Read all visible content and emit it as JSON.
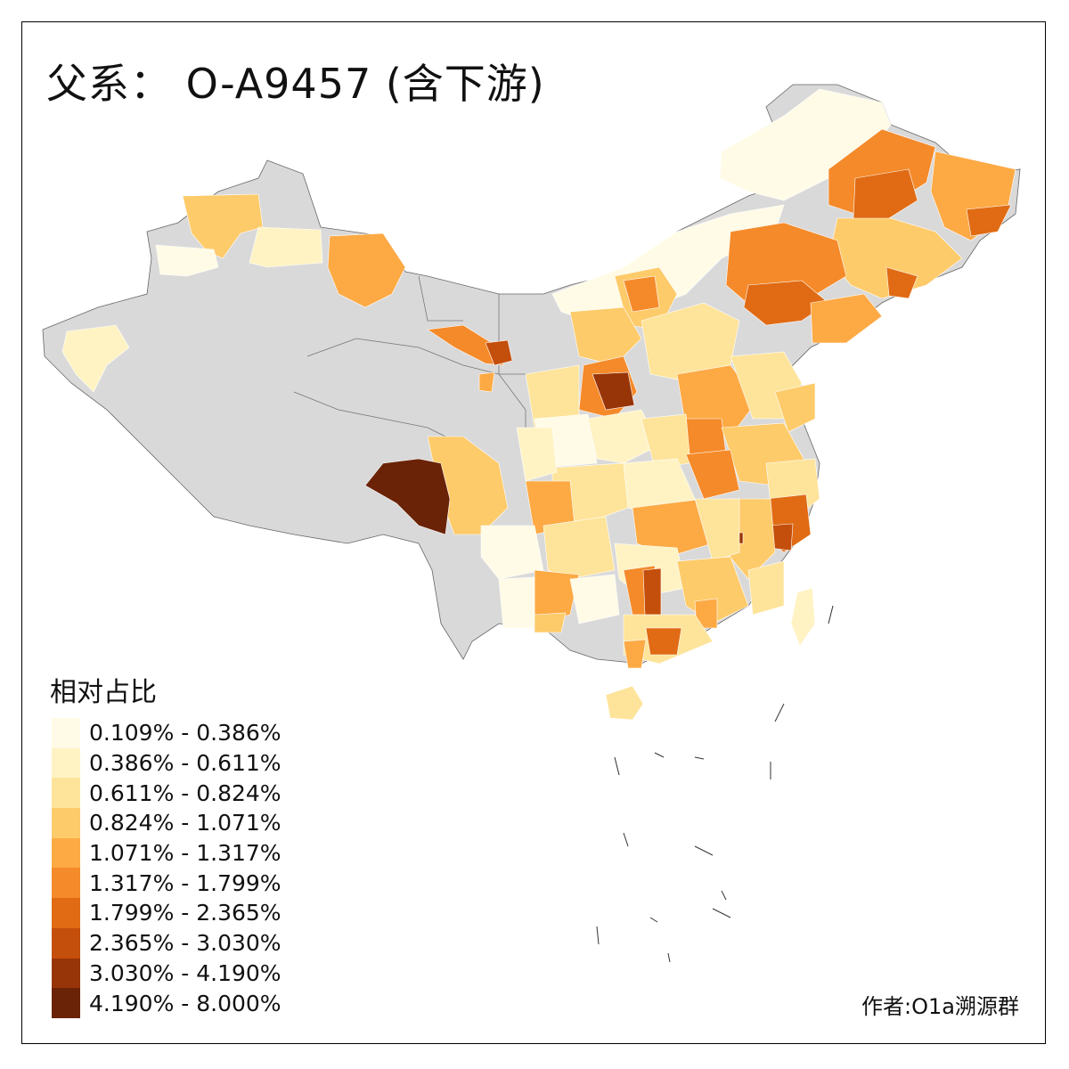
{
  "title": "父系：  O-A9457 (含下游)",
  "legend": {
    "title": "相对占比",
    "items": [
      {
        "label": "0.109% - 0.386%",
        "color": "#fffbe6"
      },
      {
        "label": "0.386% - 0.611%",
        "color": "#fff3c4"
      },
      {
        "label": "0.611% - 0.824%",
        "color": "#fee49a"
      },
      {
        "label": "0.824% - 1.071%",
        "color": "#fecb6b"
      },
      {
        "label": "1.071% - 1.317%",
        "color": "#fdaa45"
      },
      {
        "label": "1.317% - 1.799%",
        "color": "#f58a2a"
      },
      {
        "label": "1.799% - 2.365%",
        "color": "#e06b14"
      },
      {
        "label": "2.365% - 3.030%",
        "color": "#c44e0b"
      },
      {
        "label": "3.030% - 4.190%",
        "color": "#983508"
      },
      {
        "label": "4.190% - 8.000%",
        "color": "#6a2306"
      }
    ]
  },
  "no_data_color": "#d9d9d9",
  "author": "作者:O1a溯源群"
}
